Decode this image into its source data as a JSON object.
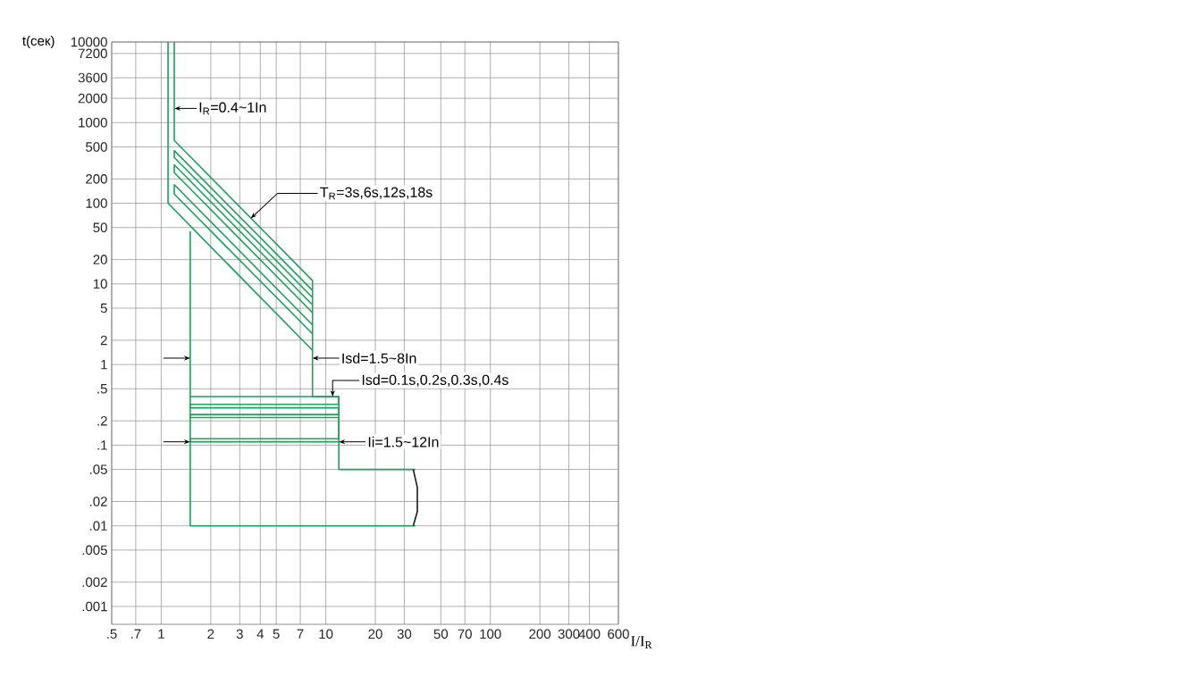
{
  "chart_data": {
    "type": "line",
    "ylabel": "t(сек)",
    "xlabel": "I/I$_{R}$",
    "log": "xy",
    "grid": true,
    "xlim": [
      0.5,
      600
    ],
    "ylim": [
      0.0006,
      10000
    ],
    "xticks": [
      {
        "value": 0.5,
        "label": ".5"
      },
      {
        "value": 0.7,
        "label": ".7"
      },
      1,
      2,
      3,
      4,
      5,
      7,
      10,
      20,
      30,
      50,
      70,
      100,
      200,
      300,
      400,
      600
    ],
    "yticks": [
      10000,
      7200,
      3600,
      2000,
      1000,
      500,
      200,
      100,
      50,
      20,
      10,
      5,
      2,
      1,
      {
        "value": 0.5,
        "label": ".5"
      },
      {
        "value": 0.2,
        "label": ".2"
      },
      {
        "value": 0.1,
        "label": ".1"
      },
      {
        "value": 0.05,
        "label": ".05"
      },
      {
        "value": 0.02,
        "label": ".02"
      },
      {
        "value": 0.01,
        "label": ".01"
      },
      {
        "value": 0.005,
        "label": ".005"
      },
      {
        "value": 0.002,
        "label": ".002"
      },
      {
        "value": 0.001,
        "label": ".001"
      }
    ],
    "series": [
      {
        "color": "#1aa35a",
        "x": [
          1.2,
          1.2,
          8.3,
          8.3,
          12,
          12,
          35
        ],
        "values": [
          10000,
          600,
          11,
          0.4,
          0.4,
          0.05,
          0.05
        ]
      },
      {
        "color": "#1aa35a",
        "x": [
          1.1,
          1.1,
          8.3
        ],
        "values": [
          10000,
          100,
          1.5
        ]
      },
      {
        "color": "#1aa35a",
        "x": [
          8.3,
          1.2,
          1.2,
          8.3
        ],
        "values": [
          6.8,
          370,
          450,
          8.3
        ]
      },
      {
        "color": "#1aa35a",
        "x": [
          8.3,
          1.2,
          1.2,
          8.3
        ],
        "values": [
          4.4,
          240,
          300,
          5.5
        ]
      },
      {
        "color": "#1aa35a",
        "x": [
          8.3,
          1.2,
          1.2,
          8.3
        ],
        "values": [
          2.4,
          130,
          170,
          3.1
        ]
      },
      {
        "color": "#1aa35a",
        "x": [
          1.5,
          1.5,
          35
        ],
        "values": [
          45,
          0.01,
          0.01
        ]
      },
      {
        "color": "#1aa35a",
        "x": [
          1.5,
          12,
          12,
          1.5,
          1.5,
          12,
          12,
          1.5,
          1.5,
          12,
          12,
          1.5,
          1.5,
          12
        ],
        "values": [
          0.4,
          0.4,
          0.32,
          0.32,
          0.29,
          0.29,
          0.24,
          0.24,
          0.22,
          0.22,
          0.12,
          0.12,
          0.11,
          0.11
        ]
      },
      {
        "color": "#1a1a1a",
        "x": [
          34,
          36,
          36,
          34
        ],
        "values": [
          0.05,
          0.03,
          0.015,
          0.01
        ]
      }
    ],
    "annotations": [
      {
        "text": "I$_{R}$=0.4~1In",
        "x": 1.2,
        "y": 1500
      },
      {
        "text": "T$_{R}$=3s,6s,12s,18s",
        "x": 3.5,
        "y": 65
      },
      {
        "text": "Isd=1.5~8In",
        "x": 8.3,
        "y": 1.2
      },
      {
        "text": "Isd=0.1s,0.2s,0.3s,0.4s",
        "x": 11,
        "y": 0.4
      },
      {
        "text": "Ii=1.5~12In",
        "x": 12,
        "y": 0.11
      }
    ]
  }
}
